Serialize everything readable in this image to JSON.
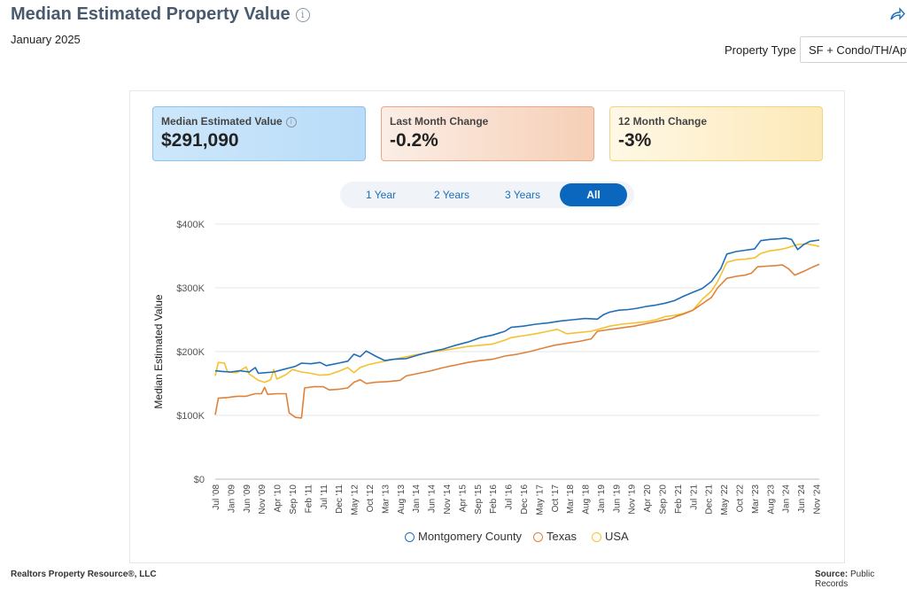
{
  "header": {
    "title": "Median Estimated Property Value",
    "date": "January 2025",
    "property_type_label": "Property Type",
    "property_type_value": "SF + Condo/TH/Apt"
  },
  "cards": [
    {
      "label": "Median Estimated Value",
      "value": "$291,090"
    },
    {
      "label": "Last Month Change",
      "value": "-0.2%"
    },
    {
      "label": "12 Month Change",
      "value": "-3%"
    }
  ],
  "tabs": [
    {
      "label": "1 Year"
    },
    {
      "label": "2 Years"
    },
    {
      "label": "3 Years"
    },
    {
      "label": "All"
    }
  ],
  "footer": {
    "left": "Realtors Property Resource®, LLC",
    "source_label": "Source:",
    "source_value": "Public Records"
  },
  "chart_data": {
    "type": "line",
    "ylabel": "Median Estimated Value",
    "ylim": [
      0,
      400000
    ],
    "yticks": [
      0,
      100000,
      200000,
      300000,
      400000
    ],
    "ytick_labels": [
      "$0",
      "$100K",
      "$200K",
      "$300K",
      "$400K"
    ],
    "xticks": [
      "Jul '08",
      "Jan '09",
      "Jun '09",
      "Nov '09",
      "Apr '10",
      "Sep '10",
      "Feb '11",
      "Jul '11",
      "Dec '11",
      "May '12",
      "Oct '12",
      "Mar '13",
      "Aug '13",
      "Jan '14",
      "Jun '14",
      "Nov '14",
      "Apr '15",
      "Sep '15",
      "Feb '16",
      "Jul '16",
      "Dec '16",
      "May '17",
      "Oct '17",
      "Mar '18",
      "Aug '18",
      "Jan '19",
      "Jun '19",
      "Nov '19",
      "Apr '20",
      "Sep '20",
      "Feb '21",
      "Jul '21",
      "Dec '21",
      "May '22",
      "Oct '22",
      "Mar '23",
      "Aug '23",
      "Jan '24",
      "Jun '24",
      "Nov '24"
    ],
    "x_range": [
      "Jul '08",
      "Jan '25"
    ],
    "series": [
      {
        "name": "Montgomery County",
        "color": "#1f6fb8",
        "points": [
          [
            0,
            170000
          ],
          [
            2,
            169000
          ],
          [
            5,
            168000
          ],
          [
            8,
            170000
          ],
          [
            11,
            168000
          ],
          [
            13,
            175000
          ],
          [
            14,
            166000
          ],
          [
            16,
            167000
          ],
          [
            19,
            168000
          ],
          [
            22,
            172000
          ],
          [
            26,
            177000
          ],
          [
            28,
            182000
          ],
          [
            31,
            181000
          ],
          [
            34,
            183000
          ],
          [
            36,
            178000
          ],
          [
            40,
            182000
          ],
          [
            43,
            185000
          ],
          [
            45,
            196000
          ],
          [
            47,
            192000
          ],
          [
            49,
            201000
          ],
          [
            52,
            193000
          ],
          [
            55,
            186000
          ],
          [
            58,
            188000
          ],
          [
            62,
            189000
          ],
          [
            66,
            195000
          ],
          [
            70,
            200000
          ],
          [
            74,
            204000
          ],
          [
            78,
            210000
          ],
          [
            82,
            215000
          ],
          [
            86,
            222000
          ],
          [
            90,
            226000
          ],
          [
            94,
            232000
          ],
          [
            96,
            238000
          ],
          [
            100,
            240000
          ],
          [
            104,
            243000
          ],
          [
            108,
            245000
          ],
          [
            112,
            248000
          ],
          [
            116,
            250000
          ],
          [
            120,
            252000
          ],
          [
            124,
            251000
          ],
          [
            126,
            258000
          ],
          [
            128,
            262000
          ],
          [
            131,
            265000
          ],
          [
            134,
            266000
          ],
          [
            137,
            268000
          ],
          [
            140,
            271000
          ],
          [
            143,
            273000
          ],
          [
            146,
            276000
          ],
          [
            149,
            280000
          ],
          [
            152,
            287000
          ],
          [
            155,
            293000
          ],
          [
            158,
            299000
          ],
          [
            161,
            310000
          ],
          [
            164,
            330000
          ],
          [
            166,
            353000
          ],
          [
            169,
            357000
          ],
          [
            172,
            359000
          ],
          [
            175,
            361000
          ],
          [
            177,
            374000
          ],
          [
            180,
            376000
          ],
          [
            183,
            377000
          ],
          [
            185,
            378000
          ],
          [
            187,
            376000
          ],
          [
            189,
            360000
          ],
          [
            191,
            368000
          ],
          [
            193,
            373000
          ],
          [
            196,
            375000
          ]
        ]
      },
      {
        "name": "Texas",
        "color": "#e0813a",
        "points": [
          [
            0,
            101000
          ],
          [
            1,
            127000
          ],
          [
            4,
            128000
          ],
          [
            7,
            130000
          ],
          [
            10,
            130000
          ],
          [
            13,
            134000
          ],
          [
            15,
            134000
          ],
          [
            16,
            144000
          ],
          [
            17,
            133000
          ],
          [
            20,
            134000
          ],
          [
            23,
            134000
          ],
          [
            24,
            104000
          ],
          [
            26,
            97000
          ],
          [
            28,
            96000
          ],
          [
            29,
            143000
          ],
          [
            32,
            145000
          ],
          [
            35,
            145000
          ],
          [
            37,
            140000
          ],
          [
            40,
            141000
          ],
          [
            43,
            143000
          ],
          [
            45,
            152000
          ],
          [
            47,
            156000
          ],
          [
            49,
            150000
          ],
          [
            52,
            152000
          ],
          [
            56,
            153000
          ],
          [
            60,
            155000
          ],
          [
            62,
            162000
          ],
          [
            66,
            166000
          ],
          [
            70,
            170000
          ],
          [
            74,
            175000
          ],
          [
            78,
            179000
          ],
          [
            82,
            183000
          ],
          [
            86,
            186000
          ],
          [
            90,
            188000
          ],
          [
            94,
            193000
          ],
          [
            98,
            196000
          ],
          [
            102,
            200000
          ],
          [
            106,
            205000
          ],
          [
            110,
            210000
          ],
          [
            114,
            213000
          ],
          [
            118,
            216000
          ],
          [
            122,
            220000
          ],
          [
            124,
            232000
          ],
          [
            127,
            234000
          ],
          [
            130,
            236000
          ],
          [
            133,
            238000
          ],
          [
            136,
            240000
          ],
          [
            139,
            243000
          ],
          [
            142,
            246000
          ],
          [
            145,
            249000
          ],
          [
            148,
            252000
          ],
          [
            150,
            256000
          ],
          [
            152,
            259000
          ],
          [
            155,
            265000
          ],
          [
            158,
            275000
          ],
          [
            161,
            285000
          ],
          [
            163,
            300000
          ],
          [
            166,
            315000
          ],
          [
            169,
            318000
          ],
          [
            172,
            320000
          ],
          [
            174,
            323000
          ],
          [
            176,
            333000
          ],
          [
            179,
            334000
          ],
          [
            182,
            335000
          ],
          [
            184,
            336000
          ],
          [
            186,
            330000
          ],
          [
            188,
            320000
          ],
          [
            191,
            326000
          ],
          [
            194,
            333000
          ],
          [
            196,
            337000
          ]
        ]
      },
      {
        "name": "USA",
        "color": "#f5c12e",
        "points": [
          [
            0,
            162000
          ],
          [
            1,
            183000
          ],
          [
            3,
            182000
          ],
          [
            4,
            168000
          ],
          [
            7,
            167000
          ],
          [
            10,
            176000
          ],
          [
            11,
            165000
          ],
          [
            14,
            155000
          ],
          [
            16,
            152000
          ],
          [
            18,
            156000
          ],
          [
            19,
            172000
          ],
          [
            20,
            157000
          ],
          [
            23,
            164000
          ],
          [
            25,
            172000
          ],
          [
            28,
            168000
          ],
          [
            31,
            166000
          ],
          [
            34,
            163000
          ],
          [
            37,
            164000
          ],
          [
            40,
            169000
          ],
          [
            43,
            175000
          ],
          [
            45,
            167000
          ],
          [
            47,
            175000
          ],
          [
            50,
            180000
          ],
          [
            54,
            184000
          ],
          [
            58,
            188000
          ],
          [
            62,
            192000
          ],
          [
            66,
            196000
          ],
          [
            70,
            199000
          ],
          [
            74,
            202000
          ],
          [
            78,
            205000
          ],
          [
            82,
            208000
          ],
          [
            86,
            210000
          ],
          [
            90,
            212000
          ],
          [
            94,
            218000
          ],
          [
            96,
            222000
          ],
          [
            100,
            225000
          ],
          [
            104,
            228000
          ],
          [
            108,
            232000
          ],
          [
            111,
            235000
          ],
          [
            114,
            228000
          ],
          [
            118,
            230000
          ],
          [
            122,
            232000
          ],
          [
            125,
            236000
          ],
          [
            128,
            240000
          ],
          [
            132,
            243000
          ],
          [
            136,
            245000
          ],
          [
            140,
            247000
          ],
          [
            143,
            250000
          ],
          [
            146,
            255000
          ],
          [
            149,
            257000
          ],
          [
            152,
            260000
          ],
          [
            155,
            265000
          ],
          [
            158,
            282000
          ],
          [
            161,
            295000
          ],
          [
            163,
            310000
          ],
          [
            166,
            340000
          ],
          [
            169,
            344000
          ],
          [
            172,
            345000
          ],
          [
            175,
            347000
          ],
          [
            177,
            354000
          ],
          [
            180,
            358000
          ],
          [
            183,
            360000
          ],
          [
            185,
            362000
          ],
          [
            187,
            365000
          ],
          [
            189,
            368000
          ],
          [
            192,
            369000
          ],
          [
            196,
            365000
          ]
        ]
      }
    ],
    "legend_position": "bottom",
    "grid": true
  }
}
